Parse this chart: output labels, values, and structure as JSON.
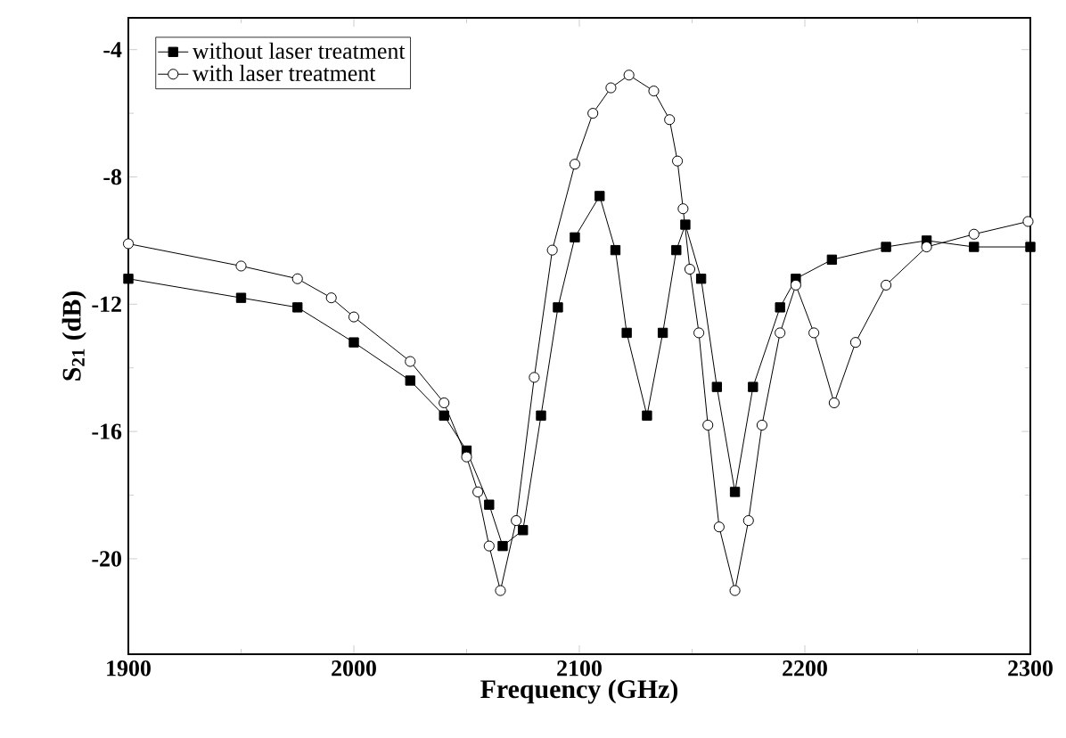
{
  "chart_data": {
    "type": "line",
    "xlabel": "Frequency (GHz)",
    "ylabel": "S$_{21}$ (dB)",
    "xlim": [
      1900,
      2300
    ],
    "ylim": [
      -23,
      -3
    ],
    "xticks": [
      1900,
      2000,
      2100,
      2200,
      2300
    ],
    "yticks": [
      -20,
      -16,
      -12,
      -8,
      -4
    ],
    "grid": false,
    "legend": "top left",
    "line_style": "solid",
    "series": [
      {
        "name": "without laser treatment",
        "color": "#000000",
        "marker": "square",
        "x": [
          1900,
          1950,
          1975,
          2000,
          2025,
          2040,
          2050,
          2060,
          2066,
          2075,
          2083,
          2090.5,
          2098,
          2109,
          2116,
          2121,
          2130,
          2137,
          2143,
          2147,
          2154,
          2161,
          2169,
          2177,
          2189,
          2196,
          2212,
          2236,
          2254,
          2275,
          2300
        ],
        "values": [
          -11.2,
          -11.8,
          -12.1,
          -13.2,
          -14.4,
          -15.5,
          -16.6,
          -18.3,
          -19.6,
          -19.1,
          -15.5,
          -12.1,
          -9.9,
          -8.6,
          -10.3,
          -12.9,
          -15.5,
          -12.9,
          -10.3,
          -9.5,
          -11.2,
          -14.6,
          -17.9,
          -14.6,
          -12.1,
          -11.2,
          -10.6,
          -10.2,
          -10.0,
          -10.2,
          -10.2
        ]
      },
      {
        "name": "with laser treatment",
        "color": "#000000",
        "marker": "circle",
        "x": [
          1900,
          1950,
          1975,
          1990,
          2000,
          2025,
          2040,
          2050,
          2055,
          2060,
          2065,
          2072,
          2080,
          2088,
          2098,
          2106,
          2114,
          2122,
          2133,
          2140,
          2143.5,
          2146,
          2149,
          2153,
          2157,
          2162,
          2169,
          2175,
          2181,
          2189,
          2196,
          2204,
          2213,
          2222.5,
          2236,
          2254,
          2275,
          2299
        ],
        "values": [
          -10.1,
          -10.8,
          -11.2,
          -11.8,
          -12.4,
          -13.8,
          -15.1,
          -16.8,
          -17.9,
          -19.6,
          -21.0,
          -18.8,
          -14.3,
          -10.3,
          -7.6,
          -6.0,
          -5.2,
          -4.8,
          -5.3,
          -6.2,
          -7.5,
          -9.0,
          -10.9,
          -12.9,
          -15.8,
          -19.0,
          -21.0,
          -18.8,
          -15.8,
          -12.9,
          -11.4,
          -12.9,
          -15.1,
          -13.2,
          -11.4,
          -10.2,
          -9.8,
          -9.4
        ]
      }
    ]
  }
}
